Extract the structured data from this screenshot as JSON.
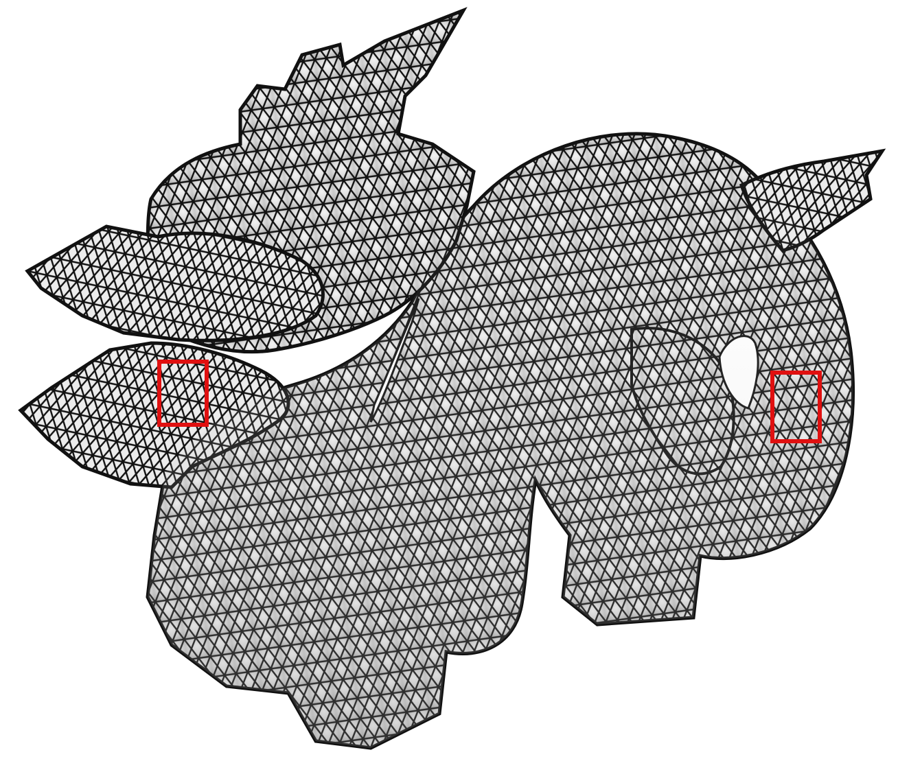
{
  "image": {
    "subject": "dragon-triangle-mesh",
    "colors": {
      "background": "#ffffff",
      "mesh_fill_light": "#f2f2f2",
      "mesh_fill_dark": "#b8b8b8",
      "mesh_lines": "#111111",
      "highlight": "#e01010"
    },
    "highlights": [
      {
        "name": "left-highlight-box"
      },
      {
        "name": "right-highlight-box"
      }
    ]
  }
}
